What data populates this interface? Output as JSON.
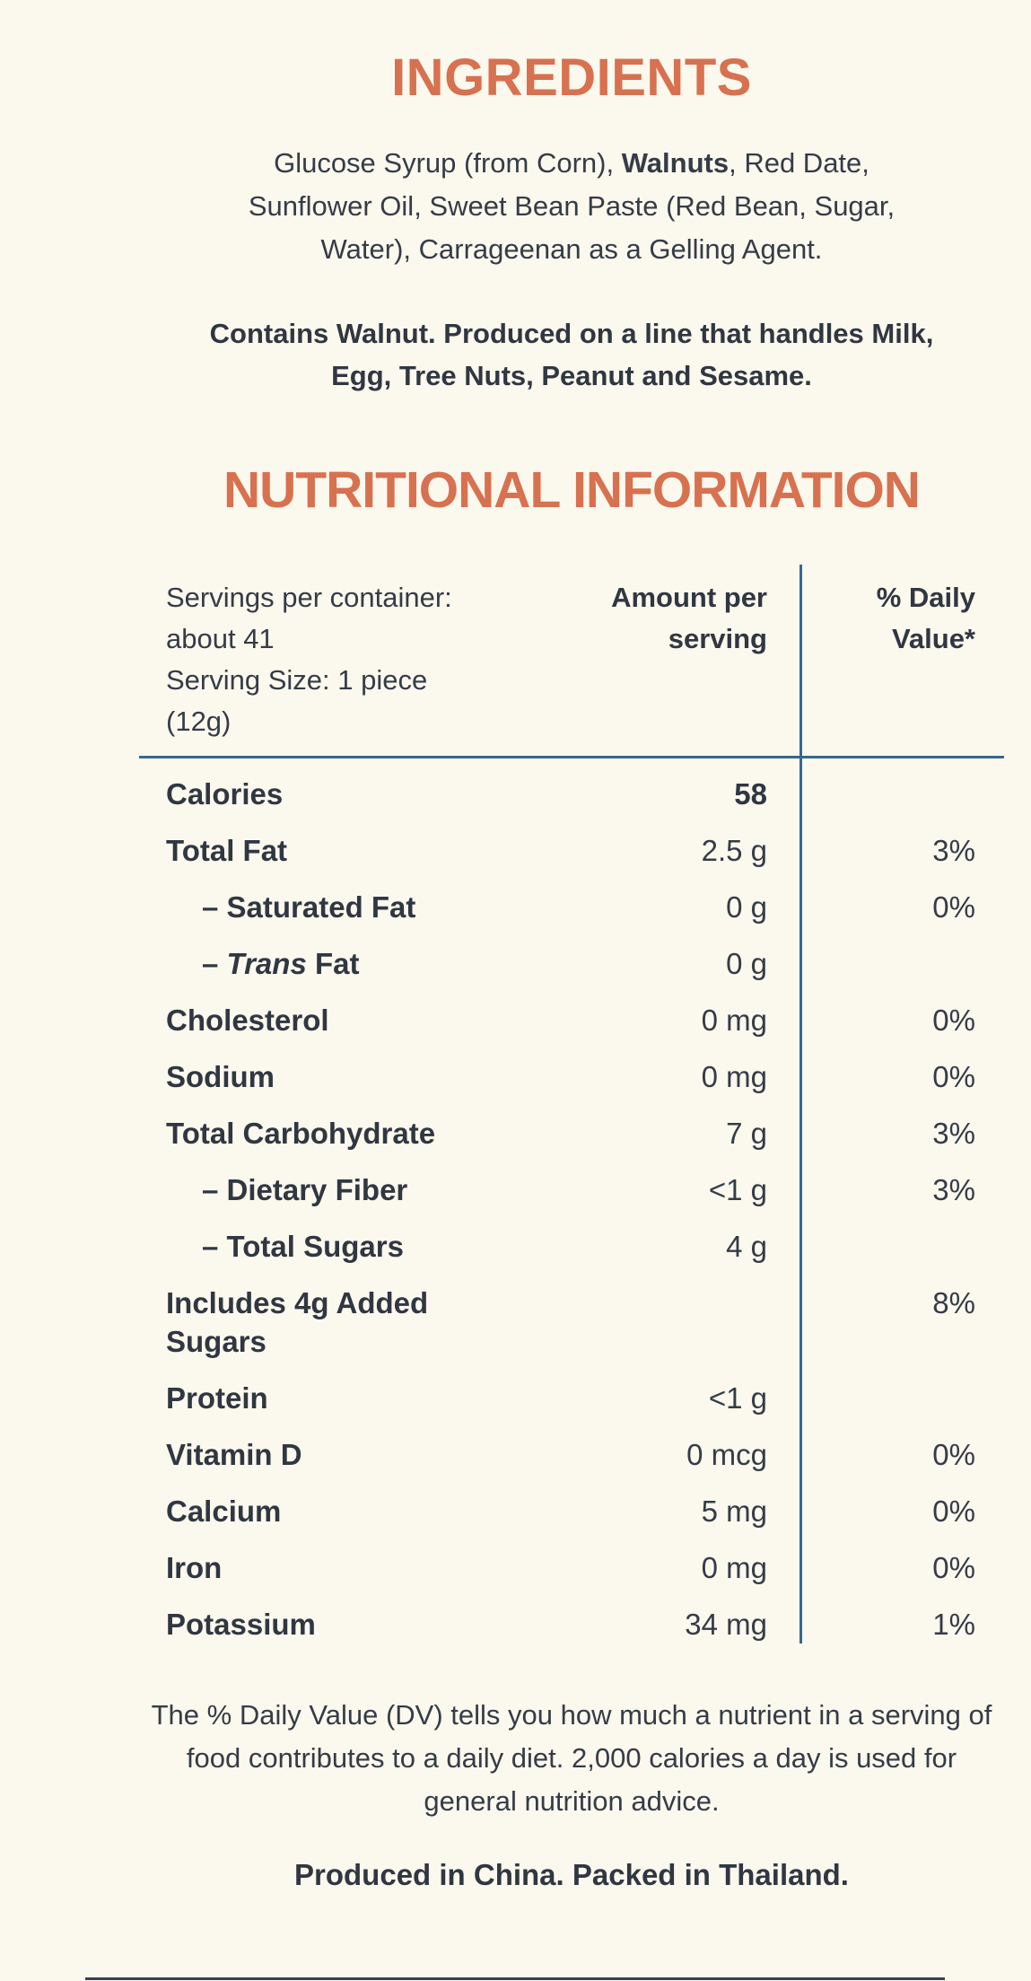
{
  "colors": {
    "background": "#FBF8EE",
    "accent_orange": "#D7714F",
    "divider_blue": "#36688F",
    "text_dark": "#353C46"
  },
  "ingredients": {
    "title": "INGREDIENTS",
    "body_before": "Glucose Syrup (from Corn), ",
    "body_bold": "Walnuts",
    "body_after": ", Red Date, Sunflower Oil, Sweet Bean Paste (Red Bean, Sugar, Water), Carrageenan as a Gelling Agent.",
    "allergen": "Contains Walnut. Produced on a line that handles Milk, Egg, Tree Nuts, Peanut and Sesame."
  },
  "nutrition": {
    "title": "NUTRITIONAL INFORMATION",
    "header": {
      "servings_line1": "Servings per container: about 41",
      "servings_line2": "Serving Size: 1 piece (12g)",
      "amount_header": "Amount per serving",
      "dv_header": "% Daily Value*"
    },
    "rows": [
      {
        "label": "Calories",
        "amount": "58",
        "dv": ""
      },
      {
        "label": "Total Fat",
        "amount": "2.5 g",
        "dv": "3%"
      },
      {
        "label": "– Saturated Fat",
        "amount": "0 g",
        "dv": "0%"
      },
      {
        "label_prefix": "– ",
        "label_italic": "Trans",
        "label_suffix": " Fat",
        "amount": "0 g",
        "dv": ""
      },
      {
        "label": "Cholesterol",
        "amount": "0 mg",
        "dv": "0%"
      },
      {
        "label": "Sodium",
        "amount": "0 mg",
        "dv": "0%"
      },
      {
        "label": "Total Carbohydrate",
        "amount": "7 g",
        "dv": "3%"
      },
      {
        "label": "– Dietary Fiber",
        "amount": "<1 g",
        "dv": "3%"
      },
      {
        "label": "– Total Sugars",
        "amount": "4 g",
        "dv": ""
      },
      {
        "label": "Includes 4g Added Sugars",
        "amount": "",
        "dv": "8%"
      },
      {
        "label": "Protein",
        "amount": "<1 g",
        "dv": ""
      },
      {
        "label": "Vitamin D",
        "amount": "0 mcg",
        "dv": "0%"
      },
      {
        "label": "Calcium",
        "amount": "5 mg",
        "dv": "0%"
      },
      {
        "label": "Iron",
        "amount": "0 mg",
        "dv": "0%"
      },
      {
        "label": "Potassium",
        "amount": "34 mg",
        "dv": "1%"
      }
    ]
  },
  "footer": {
    "dv_note": "The % Daily Value (DV) tells you how much a nutrient in a serving of food contributes to a daily diet. 2,000 calories a day is used for general nutrition advice.",
    "origin": "Produced in China. Packed in Thailand."
  }
}
